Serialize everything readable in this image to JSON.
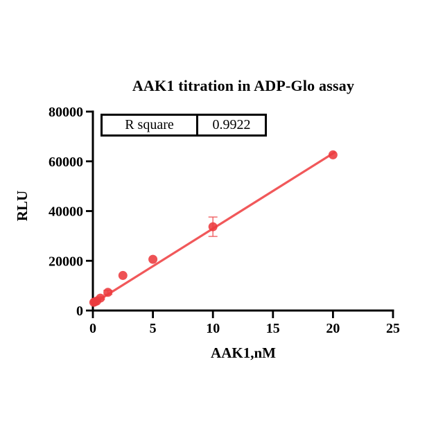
{
  "chart_data": {
    "type": "scatter",
    "title": "AAK1 titration in ADP-Glo assay",
    "xlabel": "AAK1,nM",
    "ylabel": "RLU",
    "xlim": [
      0,
      25
    ],
    "ylim": [
      0,
      80000
    ],
    "xticks": [
      0,
      5,
      10,
      15,
      20,
      25
    ],
    "yticks": [
      0,
      20000,
      40000,
      60000,
      80000
    ],
    "grid": false,
    "legend_position": "none",
    "stats_table": {
      "label": "R square",
      "value": "0.9922"
    },
    "series": [
      {
        "name": "AAK1 titration",
        "marker": "circle",
        "color": "#ec3a3d",
        "points": [
          {
            "x": 0.078,
            "y": 3300,
            "err": 0
          },
          {
            "x": 0.156,
            "y": 3500,
            "err": 0
          },
          {
            "x": 0.3125,
            "y": 3800,
            "err": 300
          },
          {
            "x": 0.625,
            "y": 5000,
            "err": 500
          },
          {
            "x": 1.25,
            "y": 7300,
            "err": 800
          },
          {
            "x": 2.5,
            "y": 14100,
            "err": 0
          },
          {
            "x": 5,
            "y": 20600,
            "err": 0
          },
          {
            "x": 10,
            "y": 33700,
            "err": 3900
          },
          {
            "x": 20,
            "y": 62600,
            "err": 0
          }
        ]
      }
    ],
    "fit_line": {
      "color": "#f04a4c",
      "x1": 0.05,
      "y1": 2850,
      "x2": 20.2,
      "y2": 63800
    },
    "colors": {
      "point": "#ec3a3d",
      "line": "#f04a4c",
      "error_bar": "#ef5355",
      "axis": "#000000",
      "background": "#ffffff"
    }
  }
}
